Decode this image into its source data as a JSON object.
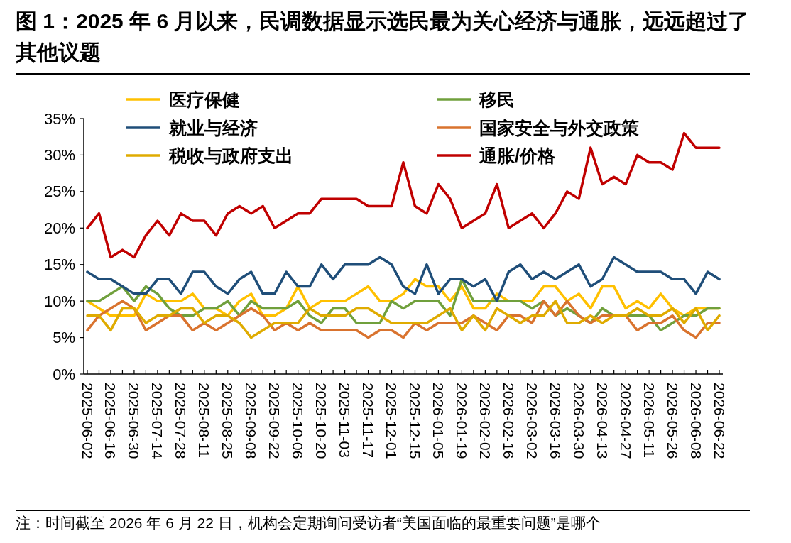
{
  "chart_data": {
    "type": "line",
    "title": "图 1：2025 年 6 月以来，民调数据显示选民最为关心经济与通胀，远远超过了其他议题",
    "annotations": [
      "注：时间截至 2026 年 6 月 22 日，机构会定期询问受访者“美国面临的最重要问题”是哪个"
    ],
    "categories": [
      "2025-06-02",
      null,
      "2025-06-16",
      null,
      "2025-06-30",
      null,
      "2025-07-14",
      null,
      "2025-07-28",
      null,
      "2025-08-11",
      null,
      "2025-08-25",
      null,
      "2025-09-08",
      null,
      "2025-09-22",
      null,
      "2025-10-06",
      null,
      "2025-10-20",
      null,
      "2025-11-03",
      null,
      "2025-11-17",
      null,
      "2025-12-01",
      null,
      "2025-12-15",
      null,
      "2026-01-05",
      null,
      "2026-01-19",
      null,
      "2026-02-02",
      null,
      "2026-02-16",
      null,
      "2026-03-02",
      null,
      "2026-03-16",
      null,
      "2026-03-30",
      null,
      "2026-04-13",
      null,
      "2026-04-27",
      null,
      "2026-05-11",
      null,
      "2026-05-26",
      null,
      "2026-06-08",
      null,
      "2026-06-22"
    ],
    "series": [
      {
        "name": "医疗保健",
        "color": "#ffc000",
        "values": [
          10,
          9,
          8,
          8,
          8,
          11,
          10,
          10,
          10,
          11,
          9,
          9,
          8,
          10,
          11,
          8,
          8,
          9,
          12,
          9,
          10,
          10,
          10,
          11,
          12,
          10,
          10,
          11,
          13,
          12,
          12,
          10,
          12,
          9,
          9,
          11,
          10,
          10,
          10,
          12,
          12,
          10,
          11,
          9,
          12,
          12,
          9,
          10,
          9,
          11,
          9,
          8,
          9,
          9,
          9
        ]
      },
      {
        "name": "移民",
        "color": "#70a03c",
        "values": [
          10,
          10,
          11,
          12,
          10,
          12,
          11,
          9,
          8,
          8,
          9,
          9,
          10,
          8,
          10,
          9,
          9,
          9,
          10,
          8,
          7,
          9,
          9,
          7,
          7,
          7,
          10,
          9,
          10,
          10,
          10,
          8,
          13,
          10,
          10,
          10,
          10,
          10,
          9,
          10,
          8,
          9,
          8,
          7,
          9,
          8,
          8,
          8,
          8,
          6,
          7,
          8,
          8,
          9,
          9
        ]
      },
      {
        "name": "就业与经济",
        "color": "#1f4e79",
        "values": [
          14,
          13,
          13,
          12,
          11,
          11,
          13,
          13,
          11,
          14,
          14,
          12,
          11,
          13,
          14,
          11,
          11,
          14,
          12,
          12,
          15,
          13,
          15,
          15,
          15,
          16,
          15,
          12,
          11,
          15,
          11,
          13,
          13,
          12,
          13,
          10,
          14,
          15,
          13,
          14,
          13,
          14,
          15,
          12,
          13,
          16,
          15,
          14,
          14,
          14,
          13,
          13,
          11,
          14,
          13
        ]
      },
      {
        "name": "国家安全与外交政策",
        "color": "#d9732e",
        "values": [
          6,
          8,
          9,
          10,
          9,
          6,
          7,
          8,
          8,
          6,
          7,
          6,
          7,
          8,
          9,
          8,
          6,
          7,
          6,
          7,
          6,
          6,
          6,
          6,
          5,
          6,
          6,
          5,
          7,
          6,
          7,
          7,
          7,
          8,
          7,
          6,
          8,
          8,
          7,
          10,
          8,
          10,
          8,
          7,
          8,
          8,
          8,
          6,
          7,
          7,
          8,
          6,
          5,
          7,
          7
        ]
      },
      {
        "name": "税收与政府支出",
        "color": "#dfab00",
        "values": [
          8,
          8,
          6,
          9,
          9,
          7,
          8,
          8,
          9,
          9,
          7,
          8,
          8,
          7,
          5,
          6,
          7,
          7,
          7,
          9,
          8,
          8,
          8,
          9,
          9,
          8,
          7,
          7,
          7,
          7,
          8,
          9,
          6,
          8,
          6,
          9,
          8,
          7,
          8,
          8,
          10,
          7,
          7,
          8,
          7,
          8,
          8,
          9,
          8,
          8,
          9,
          7,
          9,
          6,
          8
        ]
      },
      {
        "name": "通胀/价格",
        "color": "#c00000",
        "values": [
          20,
          22,
          16,
          17,
          16,
          19,
          21,
          19,
          22,
          21,
          21,
          19,
          22,
          23,
          22,
          23,
          20,
          21,
          22,
          22,
          24,
          24,
          24,
          24,
          23,
          23,
          23,
          29,
          23,
          22,
          26,
          24,
          20,
          21,
          22,
          26,
          20,
          21,
          22,
          20,
          22,
          25,
          24,
          31,
          26,
          27,
          26,
          30,
          29,
          29,
          28,
          33,
          31,
          31,
          31
        ]
      }
    ],
    "ylim": [
      0,
      35
    ],
    "yticks": [
      {
        "value": 0,
        "label": "0%"
      },
      {
        "value": 5,
        "label": "5%"
      },
      {
        "value": 10,
        "label": "10%"
      },
      {
        "value": 15,
        "label": "15%"
      },
      {
        "value": 20,
        "label": "20%"
      },
      {
        "value": 25,
        "label": "25%"
      },
      {
        "value": 30,
        "label": "30%"
      },
      {
        "value": 35,
        "label": "35%"
      }
    ],
    "grid": false,
    "legend": "top",
    "line_style": "solid",
    "marker": "none"
  }
}
